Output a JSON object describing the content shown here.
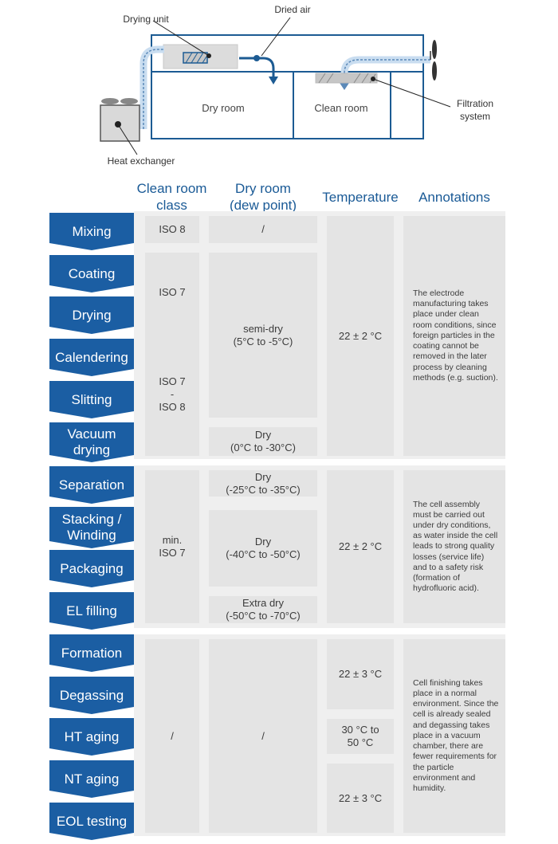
{
  "diagram": {
    "labels": {
      "drying_unit": "Drying unit",
      "dried_air": "Dried air",
      "dry_room": "Dry room",
      "clean_room": "Clean room",
      "filtration_system": "Filtration\nsystem",
      "heat_exchanger": "Heat exchanger"
    }
  },
  "headers": {
    "clean_room_class": "Clean room\nclass",
    "dry_room": "Dry room\n(dew point)",
    "temperature": "Temperature",
    "annotations": "Annotations"
  },
  "steps": [
    "Mixing",
    "Coating",
    "Drying",
    "Calendering",
    "Slitting",
    "Vacuum\ndrying",
    "Separation",
    "Stacking /\nWinding",
    "Packaging",
    "EL filling",
    "Formation",
    "Degassing",
    "HT aging",
    "NT aging",
    "EOL testing"
  ],
  "clean_class": {
    "mixing": "ISO 8",
    "coating_drying": "ISO 7",
    "calendering_slitting": "ISO 7\n-\nISO 8",
    "assembly": "min.\nISO 7",
    "finishing": "/"
  },
  "dry_room": {
    "mixing": "/",
    "electrode": "semi-dry\n(5°C to -5°C)",
    "vacuum": "Dry\n(0°C to -30°C)",
    "separation": "Dry\n(-25°C to -35°C)",
    "stacking_packaging": "Dry\n(-40°C to -50°C)",
    "el_filling": "Extra dry\n(-50°C to -70°C)",
    "finishing": "/"
  },
  "temperature": {
    "electrode": "22 ± 2 °C",
    "assembly": "22 ± 2 °C",
    "formation_degassing": "22 ± 3 °C",
    "ht_aging": "30 °C to\n50 °C",
    "nt_eol": "22 ± 3 °C"
  },
  "annotations": {
    "electrode": "The electrode manufacturing takes place under clean room conditions, since foreign particles in the coating cannot be removed in the later process by cleaning methods (e.g. suction).",
    "assembly": "The cell assembly must be carried out under dry conditions, as water inside the cell leads to strong quality losses (service life) and to a safety risk (formation of hydrofluoric acid).",
    "finishing": "Cell finishing takes place in a normal environment. Since the cell is already sealed and degassing takes place in a vacuum chamber, there are fewer requirements for the particle environment and humidity."
  }
}
